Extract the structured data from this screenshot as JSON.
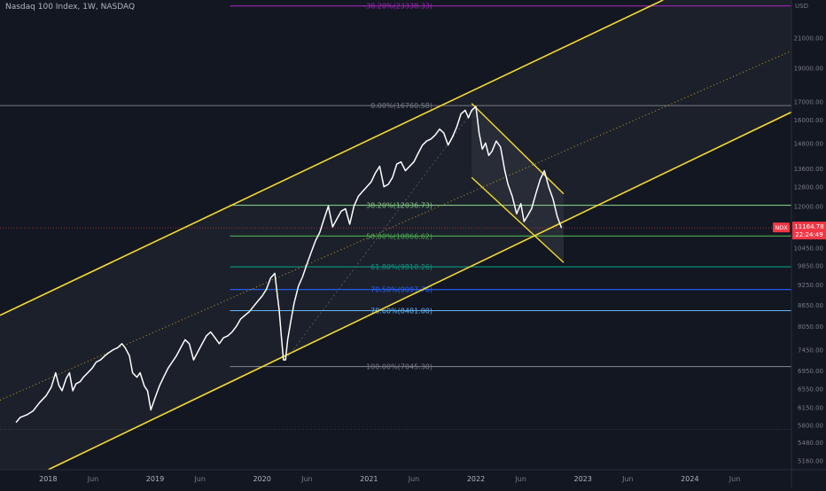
{
  "header": {
    "title": "Nasdaq 100 Index, 1W, NASDAQ",
    "currency": "USD"
  },
  "price_badge": {
    "symbol": "NDX",
    "price": "11164.78",
    "countdown": "22:24:49",
    "color": "#f23645"
  },
  "chart_data": {
    "type": "line",
    "series": [
      {
        "values": [
          [
            2017.7,
            5850
          ],
          [
            2017.74,
            5950
          ],
          [
            2017.8,
            6000
          ],
          [
            2017.86,
            6080
          ],
          [
            2017.92,
            6250
          ],
          [
            2017.98,
            6390
          ],
          [
            2018.03,
            6580
          ],
          [
            2018.07,
            6900
          ],
          [
            2018.1,
            6620
          ],
          [
            2018.13,
            6500
          ],
          [
            2018.17,
            6780
          ],
          [
            2018.2,
            6900
          ],
          [
            2018.23,
            6500
          ],
          [
            2018.26,
            6650
          ],
          [
            2018.3,
            6700
          ],
          [
            2018.33,
            6800
          ],
          [
            2018.37,
            6900
          ],
          [
            2018.41,
            7000
          ],
          [
            2018.45,
            7150
          ],
          [
            2018.49,
            7200
          ],
          [
            2018.53,
            7300
          ],
          [
            2018.57,
            7380
          ],
          [
            2018.61,
            7450
          ],
          [
            2018.65,
            7500
          ],
          [
            2018.69,
            7600
          ],
          [
            2018.72,
            7500
          ],
          [
            2018.76,
            7300
          ],
          [
            2018.79,
            6900
          ],
          [
            2018.83,
            6800
          ],
          [
            2018.86,
            6900
          ],
          [
            2018.9,
            6600
          ],
          [
            2018.93,
            6500
          ],
          [
            2018.96,
            6100
          ],
          [
            2019.0,
            6350
          ],
          [
            2019.04,
            6600
          ],
          [
            2019.08,
            6800
          ],
          [
            2019.12,
            7000
          ],
          [
            2019.16,
            7150
          ],
          [
            2019.2,
            7300
          ],
          [
            2019.24,
            7500
          ],
          [
            2019.28,
            7700
          ],
          [
            2019.32,
            7600
          ],
          [
            2019.36,
            7200
          ],
          [
            2019.4,
            7400
          ],
          [
            2019.44,
            7600
          ],
          [
            2019.48,
            7800
          ],
          [
            2019.52,
            7900
          ],
          [
            2019.56,
            7750
          ],
          [
            2019.6,
            7600
          ],
          [
            2019.64,
            7750
          ],
          [
            2019.68,
            7800
          ],
          [
            2019.72,
            7900
          ],
          [
            2019.76,
            8050
          ],
          [
            2019.8,
            8250
          ],
          [
            2019.84,
            8350
          ],
          [
            2019.88,
            8450
          ],
          [
            2019.92,
            8600
          ],
          [
            2019.96,
            8750
          ],
          [
            2020.0,
            8900
          ],
          [
            2020.04,
            9100
          ],
          [
            2020.08,
            9450
          ],
          [
            2020.12,
            9600
          ],
          [
            2020.14,
            9000
          ],
          [
            2020.16,
            8500
          ],
          [
            2020.18,
            7800
          ],
          [
            2020.2,
            7200
          ],
          [
            2020.22,
            7200
          ],
          [
            2020.24,
            7700
          ],
          [
            2020.27,
            8200
          ],
          [
            2020.3,
            8700
          ],
          [
            2020.34,
            9200
          ],
          [
            2020.38,
            9500
          ],
          [
            2020.42,
            9900
          ],
          [
            2020.46,
            10300
          ],
          [
            2020.5,
            10700
          ],
          [
            2020.54,
            11000
          ],
          [
            2020.58,
            11500
          ],
          [
            2020.62,
            12000
          ],
          [
            2020.66,
            11200
          ],
          [
            2020.7,
            11500
          ],
          [
            2020.74,
            11800
          ],
          [
            2020.78,
            11900
          ],
          [
            2020.82,
            11300
          ],
          [
            2020.86,
            12000
          ],
          [
            2020.9,
            12400
          ],
          [
            2020.94,
            12600
          ],
          [
            2020.98,
            12800
          ],
          [
            2021.02,
            13000
          ],
          [
            2021.06,
            13400
          ],
          [
            2021.1,
            13700
          ],
          [
            2021.14,
            12800
          ],
          [
            2021.18,
            12900
          ],
          [
            2021.22,
            13200
          ],
          [
            2021.26,
            13800
          ],
          [
            2021.3,
            13900
          ],
          [
            2021.34,
            13500
          ],
          [
            2021.38,
            13700
          ],
          [
            2021.42,
            13900
          ],
          [
            2021.46,
            14300
          ],
          [
            2021.5,
            14700
          ],
          [
            2021.54,
            14900
          ],
          [
            2021.58,
            15000
          ],
          [
            2021.62,
            15200
          ],
          [
            2021.66,
            15500
          ],
          [
            2021.7,
            15300
          ],
          [
            2021.74,
            14700
          ],
          [
            2021.78,
            15100
          ],
          [
            2021.82,
            15600
          ],
          [
            2021.86,
            16300
          ],
          [
            2021.9,
            16500
          ],
          [
            2021.93,
            16100
          ],
          [
            2021.96,
            16500
          ],
          [
            2022.0,
            16700
          ],
          [
            2022.03,
            15300
          ],
          [
            2022.06,
            14500
          ],
          [
            2022.09,
            14800
          ],
          [
            2022.12,
            14200
          ],
          [
            2022.15,
            14400
          ],
          [
            2022.19,
            14900
          ],
          [
            2022.23,
            14600
          ],
          [
            2022.27,
            13500
          ],
          [
            2022.3,
            12900
          ],
          [
            2022.34,
            12400
          ],
          [
            2022.38,
            11700
          ],
          [
            2022.42,
            12100
          ],
          [
            2022.45,
            11400
          ],
          [
            2022.48,
            11600
          ],
          [
            2022.52,
            11900
          ],
          [
            2022.56,
            12500
          ],
          [
            2022.6,
            13100
          ],
          [
            2022.64,
            13500
          ],
          [
            2022.68,
            12800
          ],
          [
            2022.72,
            12300
          ],
          [
            2022.76,
            11600
          ],
          [
            2022.8,
            11164.78
          ]
        ]
      }
    ],
    "xlim": [
      2017.55,
      2024.95
    ],
    "ylim": [
      5000,
      23800
    ],
    "y_scale": "log",
    "x_ticks": [
      {
        "x": 2018.0,
        "label": "2018",
        "bold": true
      },
      {
        "x": 2018.42,
        "label": "Jun",
        "bold": false
      },
      {
        "x": 2019.0,
        "label": "2019",
        "bold": true
      },
      {
        "x": 2019.42,
        "label": "Jun",
        "bold": false
      },
      {
        "x": 2020.0,
        "label": "2020",
        "bold": true
      },
      {
        "x": 2020.42,
        "label": "Jun",
        "bold": false
      },
      {
        "x": 2021.0,
        "label": "2021",
        "bold": true
      },
      {
        "x": 2021.42,
        "label": "Jun",
        "bold": false
      },
      {
        "x": 2022.0,
        "label": "2022",
        "bold": true
      },
      {
        "x": 2022.42,
        "label": "Jun",
        "bold": false
      },
      {
        "x": 2023.0,
        "label": "2023",
        "bold": true
      },
      {
        "x": 2023.42,
        "label": "Jun",
        "bold": false
      },
      {
        "x": 2024.0,
        "label": "2024",
        "bold": true
      },
      {
        "x": 2024.42,
        "label": "Jun",
        "bold": false
      }
    ],
    "y_ticks": [
      {
        "v": 5160,
        "label": "5160.00"
      },
      {
        "v": 5480,
        "label": "5480.00"
      },
      {
        "v": 5800,
        "label": "5800.00"
      },
      {
        "v": 6150,
        "label": "6150.00"
      },
      {
        "v": 6550,
        "label": "6550.00"
      },
      {
        "v": 6950,
        "label": "6950.00"
      },
      {
        "v": 7450,
        "label": "7450.00"
      },
      {
        "v": 8050,
        "label": "8050.00"
      },
      {
        "v": 8650,
        "label": "8650.00"
      },
      {
        "v": 9250,
        "label": "9250.00"
      },
      {
        "v": 9850,
        "label": "9850.00"
      },
      {
        "v": 10450,
        "label": "10450.00"
      },
      {
        "v": 12000,
        "label": "12000.00"
      },
      {
        "v": 12800,
        "label": "12800.00"
      },
      {
        "v": 13600,
        "label": "13600.00"
      },
      {
        "v": 14800,
        "label": "14800.00"
      },
      {
        "v": 16000,
        "label": "16000.00"
      },
      {
        "v": 17000,
        "label": "17000.00"
      },
      {
        "v": 19000,
        "label": "19000.00"
      },
      {
        "v": 21000,
        "label": "21000.00"
      }
    ],
    "fib_levels": [
      {
        "level": "-38.20%",
        "value": 23338.33,
        "label": "-38.20%(23338.33)",
        "color": "#9c27b0",
        "x_start": 2019.7
      },
      {
        "level": "0.00%",
        "value": 16760.58,
        "label": "0.00%(16760.58)",
        "color": "#787b86",
        "x_start": 2017.55
      },
      {
        "level": "38.20%",
        "value": 12036.73,
        "label": "38.20%(12036.73)",
        "color": "#81c784",
        "x_start": 2019.7
      },
      {
        "level": "50.00%",
        "value": 10866.62,
        "label": "50.00%(10866.62)",
        "color": "#4caf50",
        "x_start": 2019.7
      },
      {
        "level": "61.80%",
        "value": 9810.26,
        "label": "61.80%(9810.26)",
        "color": "#089981",
        "x_start": 2019.7
      },
      {
        "level": "70.50%",
        "value": 9097.76,
        "label": "70.50%(9097.76)",
        "color": "#2962ff",
        "x_start": 2019.7
      },
      {
        "level": "78.60%",
        "value": 8481.0,
        "label": "78.60%(8481.00)",
        "color": "#64b5f6",
        "x_start": 2019.7
      },
      {
        "level": "100.00%",
        "value": 7045.3,
        "label": "100.00%(7045.30)",
        "color": "#787b86",
        "x_start": 2019.7
      }
    ],
    "channel": {
      "color": "#f5d933",
      "upper": [
        [
          2017.55,
          8350
        ],
        [
          2023.75,
          23800
        ]
      ],
      "lower": [
        [
          2018.0,
          5000
        ],
        [
          2024.95,
          16400
        ]
      ],
      "mid": [
        [
          2017.55,
          6300
        ],
        [
          2024.95,
          20100
        ]
      ]
    },
    "descending_channel": {
      "color": "#f5d933",
      "upper": [
        [
          2021.96,
          16880
        ],
        [
          2022.82,
          12500
        ]
      ],
      "lower": [
        [
          2021.96,
          13200
        ],
        [
          2022.82,
          9950
        ]
      ]
    },
    "current_price": {
      "value": 11164.78,
      "color": "#f23645"
    },
    "extra_dotted_level": {
      "value": 5720,
      "color": "#787b86"
    }
  },
  "colors": {
    "background": "#131722",
    "price_line": "#ffffff",
    "channel_fill": "#1e222d",
    "axis_text": "#787b86"
  }
}
